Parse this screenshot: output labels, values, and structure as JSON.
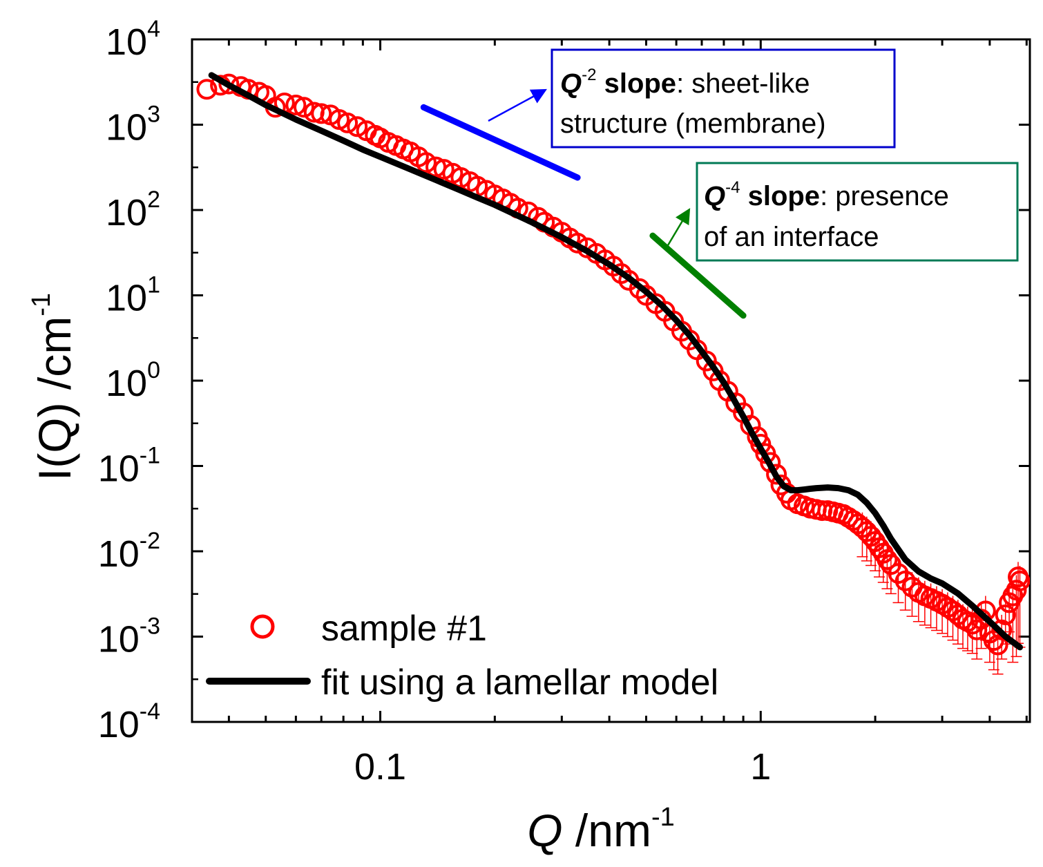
{
  "chart_data": {
    "type": "scatter",
    "x_scale": "log",
    "y_scale": "log",
    "xlabel_symbol": "Q",
    "xlabel_unit": " /nm",
    "xlabel_exp": "-1",
    "ylabel_main": "I(Q) /cm",
    "ylabel_exp": "-1",
    "xlim": [
      0.032,
      5.1
    ],
    "ylim": [
      0.0001,
      10000
    ],
    "x_ticks": [
      {
        "value": 0.1,
        "label": "0.1"
      },
      {
        "value": 1,
        "label": "1"
      }
    ],
    "y_ticks": [
      {
        "value": 10000,
        "base": "10",
        "exp": "4"
      },
      {
        "value": 1000,
        "base": "10",
        "exp": "3"
      },
      {
        "value": 100,
        "base": "10",
        "exp": "2"
      },
      {
        "value": 10,
        "base": "10",
        "exp": "1"
      },
      {
        "value": 1,
        "base": "10",
        "exp": "0"
      },
      {
        "value": 0.1,
        "base": "10",
        "exp": "-1"
      },
      {
        "value": 0.01,
        "base": "10",
        "exp": "-2"
      },
      {
        "value": 0.001,
        "base": "10",
        "exp": "-3"
      },
      {
        "value": 0.0001,
        "base": "10",
        "exp": "-4"
      }
    ],
    "series": [
      {
        "name": "sample #1",
        "kind": "markers",
        "color": "#ff0000",
        "x": [
          0.035,
          0.038,
          0.04,
          0.043,
          0.045,
          0.048,
          0.05,
          0.053,
          0.056,
          0.06,
          0.063,
          0.067,
          0.07,
          0.074,
          0.078,
          0.082,
          0.087,
          0.092,
          0.097,
          0.1,
          0.105,
          0.11,
          0.115,
          0.12,
          0.126,
          0.132,
          0.14,
          0.147,
          0.155,
          0.163,
          0.172,
          0.18,
          0.19,
          0.2,
          0.21,
          0.22,
          0.23,
          0.245,
          0.26,
          0.27,
          0.285,
          0.3,
          0.315,
          0.33,
          0.35,
          0.37,
          0.39,
          0.41,
          0.43,
          0.45,
          0.48,
          0.5,
          0.53,
          0.56,
          0.59,
          0.62,
          0.65,
          0.68,
          0.72,
          0.75,
          0.78,
          0.82,
          0.86,
          0.9,
          0.94,
          0.98,
          1.0,
          1.03,
          1.06,
          1.1,
          1.13,
          1.17,
          1.2,
          1.25,
          1.3,
          1.35,
          1.4,
          1.45,
          1.5,
          1.55,
          1.6,
          1.65,
          1.7,
          1.75,
          1.8,
          1.85,
          1.9,
          1.95,
          2.0,
          2.05,
          2.1,
          2.15,
          2.2,
          2.3,
          2.4,
          2.5,
          2.6,
          2.7,
          2.8,
          2.9,
          3.0,
          3.1,
          3.2,
          3.3,
          3.4,
          3.5,
          3.6,
          3.7,
          3.8,
          3.9,
          4.0,
          4.1,
          4.2,
          4.3,
          4.4,
          4.5,
          4.6,
          4.7,
          4.75,
          4.8
        ],
        "y": [
          2600,
          2900,
          3000,
          2800,
          2600,
          2400,
          2200,
          1600,
          1800,
          1700,
          1600,
          1400,
          1350,
          1300,
          1150,
          1050,
          950,
          850,
          750,
          700,
          620,
          570,
          520,
          480,
          420,
          360,
          320,
          300,
          270,
          240,
          215,
          190,
          170,
          150,
          135,
          120,
          105,
          95,
          82,
          72,
          63,
          55,
          47,
          41,
          36,
          31,
          26,
          22,
          18,
          15,
          12,
          10,
          8,
          6.5,
          5,
          3.8,
          3,
          2.3,
          1.7,
          1.3,
          1.0,
          0.75,
          0.55,
          0.42,
          0.3,
          0.22,
          0.18,
          0.14,
          0.11,
          0.08,
          0.06,
          0.048,
          0.04,
          0.036,
          0.034,
          0.032,
          0.031,
          0.03,
          0.03,
          0.029,
          0.028,
          0.027,
          0.025,
          0.023,
          0.021,
          0.019,
          0.017,
          0.015,
          0.013,
          0.011,
          0.0095,
          0.008,
          0.007,
          0.0055,
          0.0045,
          0.0038,
          0.0033,
          0.003,
          0.0028,
          0.0026,
          0.0024,
          0.0022,
          0.002,
          0.0018,
          0.0016,
          0.0015,
          0.0014,
          0.0012,
          0.0016,
          0.002,
          0.0011,
          0.0009,
          0.0008,
          0.0012,
          0.0018,
          0.0025,
          0.003,
          0.0035,
          0.005,
          0.0045
        ]
      },
      {
        "name": "fit using a lamellar model",
        "kind": "line",
        "color": "#000000",
        "x": [
          0.036,
          0.04,
          0.045,
          0.05,
          0.06,
          0.07,
          0.08,
          0.09,
          0.1,
          0.12,
          0.14,
          0.16,
          0.18,
          0.2,
          0.25,
          0.3,
          0.35,
          0.4,
          0.45,
          0.5,
          0.55,
          0.6,
          0.65,
          0.7,
          0.75,
          0.8,
          0.85,
          0.9,
          0.95,
          1.0,
          1.05,
          1.1,
          1.15,
          1.2,
          1.25,
          1.3,
          1.35,
          1.4,
          1.5,
          1.6,
          1.7,
          1.8,
          1.9,
          2.0,
          2.1,
          2.2,
          2.4,
          2.6,
          2.8,
          3.0,
          3.3,
          3.6,
          4.0,
          4.4,
          4.8
        ],
        "y": [
          3800,
          2900,
          2200,
          1700,
          1150,
          850,
          650,
          510,
          420,
          300,
          225,
          175,
          140,
          115,
          72,
          48,
          33,
          23,
          16,
          11,
          7.6,
          5.1,
          3.4,
          2.2,
          1.45,
          0.95,
          0.6,
          0.38,
          0.24,
          0.16,
          0.11,
          0.075,
          0.058,
          0.052,
          0.052,
          0.053,
          0.054,
          0.055,
          0.056,
          0.055,
          0.052,
          0.046,
          0.037,
          0.028,
          0.02,
          0.014,
          0.008,
          0.0058,
          0.0048,
          0.0042,
          0.0032,
          0.0023,
          0.0015,
          0.001,
          0.00075
        ]
      }
    ],
    "annotations": [
      {
        "id": "q2",
        "title_symbol": "Q",
        "title_exp": "-2",
        "title_bold": " slope",
        "title_rest": ": sheet-like",
        "line2": "structure (membrane)",
        "color": "#0000ff",
        "box_color": "#0000cc",
        "slope_segment": {
          "x": [
            0.13,
            0.33
          ],
          "y": [
            1600,
            240
          ]
        }
      },
      {
        "id": "q4",
        "title_symbol": "Q",
        "title_exp": "-4",
        "title_bold": " slope",
        "title_rest": ": presence",
        "line2": "of an interface",
        "color": "#008000",
        "box_color": "#007a55",
        "slope_segment": {
          "x": [
            0.52,
            0.9
          ],
          "y": [
            50,
            5.8
          ]
        }
      }
    ],
    "legend": {
      "placement": "bottom-left",
      "entries": [
        "sample #1",
        "fit using a lamellar model"
      ]
    }
  }
}
